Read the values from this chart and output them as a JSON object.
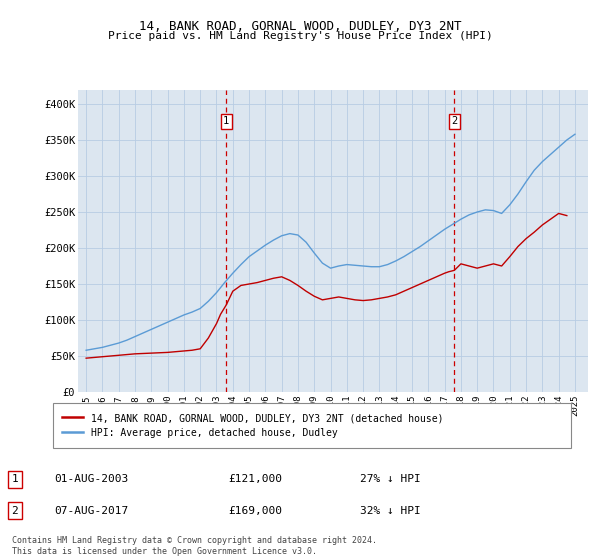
{
  "title": "14, BANK ROAD, GORNAL WOOD, DUDLEY, DY3 2NT",
  "subtitle": "Price paid vs. HM Land Registry's House Price Index (HPI)",
  "plot_bg_color": "#dce6f0",
  "ylim": [
    0,
    420000
  ],
  "yticks": [
    0,
    50000,
    100000,
    150000,
    200000,
    250000,
    300000,
    350000,
    400000
  ],
  "ytick_labels": [
    "£0",
    "£50K",
    "£100K",
    "£150K",
    "£200K",
    "£250K",
    "£300K",
    "£350K",
    "£400K"
  ],
  "xtick_years": [
    1995,
    1996,
    1997,
    1998,
    1999,
    2000,
    2001,
    2002,
    2003,
    2004,
    2005,
    2006,
    2007,
    2008,
    2009,
    2010,
    2011,
    2012,
    2013,
    2014,
    2015,
    2016,
    2017,
    2018,
    2019,
    2020,
    2021,
    2022,
    2023,
    2024,
    2025
  ],
  "xlim": [
    1994.5,
    2025.8
  ],
  "hpi_color": "#5b9bd5",
  "price_color": "#c00000",
  "marker1_year": 2003.6,
  "marker2_year": 2017.6,
  "legend_label_red": "14, BANK ROAD, GORNAL WOOD, DUDLEY, DY3 2NT (detached house)",
  "legend_label_blue": "HPI: Average price, detached house, Dudley",
  "table_row1": [
    "1",
    "01-AUG-2003",
    "£121,000",
    "27% ↓ HPI"
  ],
  "table_row2": [
    "2",
    "07-AUG-2017",
    "£169,000",
    "32% ↓ HPI"
  ],
  "footnote": "Contains HM Land Registry data © Crown copyright and database right 2024.\nThis data is licensed under the Open Government Licence v3.0.",
  "hpi_years": [
    1995,
    1995.5,
    1996,
    1996.5,
    1997,
    1997.5,
    1998,
    1998.5,
    1999,
    1999.5,
    2000,
    2000.5,
    2001,
    2001.5,
    2002,
    2002.5,
    2003,
    2003.5,
    2004,
    2004.5,
    2005,
    2005.5,
    2006,
    2006.5,
    2007,
    2007.5,
    2008,
    2008.5,
    2009,
    2009.5,
    2010,
    2010.5,
    2011,
    2011.5,
    2012,
    2012.5,
    2013,
    2013.5,
    2014,
    2014.5,
    2015,
    2015.5,
    2016,
    2016.5,
    2017,
    2017.5,
    2018,
    2018.5,
    2019,
    2019.5,
    2020,
    2020.5,
    2021,
    2021.5,
    2022,
    2022.5,
    2023,
    2023.5,
    2024,
    2024.5,
    2025
  ],
  "hpi_vals": [
    58000,
    60000,
    62000,
    65000,
    68000,
    72000,
    77000,
    82000,
    87000,
    92000,
    97000,
    102000,
    107000,
    111000,
    116000,
    126000,
    138000,
    152000,
    165000,
    177000,
    188000,
    196000,
    204000,
    211000,
    217000,
    220000,
    218000,
    208000,
    193000,
    179000,
    172000,
    175000,
    177000,
    176000,
    175000,
    174000,
    174000,
    177000,
    182000,
    188000,
    195000,
    202000,
    210000,
    218000,
    226000,
    233000,
    240000,
    246000,
    250000,
    253000,
    252000,
    248000,
    260000,
    275000,
    292000,
    308000,
    320000,
    330000,
    340000,
    350000,
    358000
  ],
  "price_years": [
    1995,
    1995.5,
    1996,
    1996.5,
    1997,
    1997.5,
    1998,
    1998.5,
    1999,
    1999.5,
    2000,
    2000.5,
    2001,
    2001.5,
    2002,
    2002.5,
    2003,
    2003.25,
    2003.6,
    2004,
    2004.5,
    2005,
    2005.5,
    2006,
    2006.5,
    2007,
    2007.5,
    2008,
    2008.5,
    2009,
    2009.5,
    2010,
    2010.5,
    2011,
    2011.5,
    2012,
    2012.5,
    2013,
    2013.5,
    2014,
    2014.5,
    2015,
    2015.5,
    2016,
    2016.5,
    2017,
    2017.25,
    2017.6,
    2018,
    2018.5,
    2019,
    2019.5,
    2020,
    2020.5,
    2021,
    2021.5,
    2022,
    2022.5,
    2023,
    2023.5,
    2024,
    2024.5
  ],
  "price_vals": [
    47000,
    48000,
    49000,
    50000,
    51000,
    52000,
    53000,
    53500,
    54000,
    54500,
    55000,
    56000,
    57000,
    58000,
    60000,
    75000,
    95000,
    108000,
    121000,
    140000,
    148000,
    150000,
    152000,
    155000,
    158000,
    160000,
    155000,
    148000,
    140000,
    133000,
    128000,
    130000,
    132000,
    130000,
    128000,
    127000,
    128000,
    130000,
    132000,
    135000,
    140000,
    145000,
    150000,
    155000,
    160000,
    165000,
    167000,
    169000,
    178000,
    175000,
    172000,
    175000,
    178000,
    175000,
    188000,
    202000,
    213000,
    222000,
    232000,
    240000,
    248000,
    245000
  ]
}
